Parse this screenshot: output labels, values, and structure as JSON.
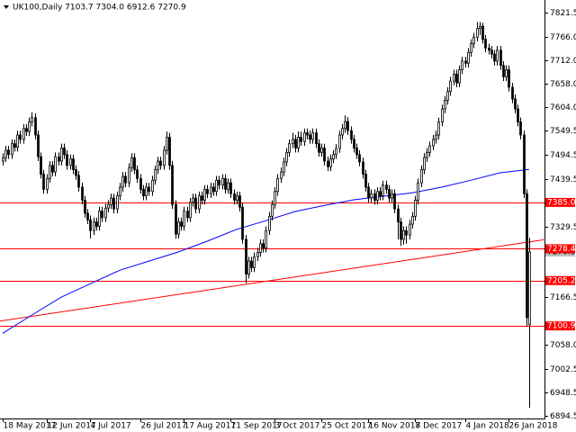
{
  "chart_data": {
    "type": "candlestick",
    "title": "UK100,Daily  7103.7 7304.0 6912.6 7270.9",
    "bull_color": "#ffffff",
    "bear_color": "#000000",
    "outline_color": "#000000",
    "ohlc": [
      [
        7480,
        7498,
        7470,
        7488
      ],
      [
        7488,
        7515,
        7478,
        7505
      ],
      [
        7505,
        7515,
        7485,
        7495
      ],
      [
        7495,
        7530,
        7485,
        7520
      ],
      [
        7520,
        7530,
        7502,
        7512
      ],
      [
        7512,
        7550,
        7502,
        7540
      ],
      [
        7540,
        7550,
        7520,
        7530
      ],
      [
        7530,
        7565,
        7520,
        7555
      ],
      [
        7555,
        7565,
        7538,
        7548
      ],
      [
        7548,
        7580,
        7538,
        7570
      ],
      [
        7570,
        7592,
        7560,
        7580
      ],
      [
        7580,
        7590,
        7530,
        7540
      ],
      [
        7540,
        7550,
        7480,
        7490
      ],
      [
        7490,
        7500,
        7440,
        7450
      ],
      [
        7450,
        7460,
        7405,
        7415
      ],
      [
        7415,
        7450,
        7405,
        7440
      ],
      [
        7440,
        7480,
        7430,
        7470
      ],
      [
        7470,
        7480,
        7445,
        7455
      ],
      [
        7455,
        7500,
        7445,
        7490
      ],
      [
        7490,
        7500,
        7470,
        7480
      ],
      [
        7480,
        7520,
        7470,
        7510
      ],
      [
        7510,
        7520,
        7485,
        7495
      ],
      [
        7495,
        7505,
        7460,
        7470
      ],
      [
        7470,
        7495,
        7460,
        7485
      ],
      [
        7485,
        7495,
        7450,
        7460
      ],
      [
        7460,
        7470,
        7437,
        7447
      ],
      [
        7447,
        7457,
        7410,
        7420
      ],
      [
        7420,
        7430,
        7380,
        7390
      ],
      [
        7390,
        7400,
        7350,
        7360
      ],
      [
        7360,
        7370,
        7335,
        7345
      ],
      [
        7345,
        7355,
        7302,
        7320
      ],
      [
        7320,
        7350,
        7310,
        7340
      ],
      [
        7340,
        7350,
        7320,
        7330
      ],
      [
        7330,
        7375,
        7320,
        7365
      ],
      [
        7365,
        7375,
        7340,
        7350
      ],
      [
        7350,
        7382,
        7340,
        7372
      ],
      [
        7372,
        7390,
        7362,
        7380
      ],
      [
        7380,
        7405,
        7370,
        7395
      ],
      [
        7395,
        7405,
        7360,
        7370
      ],
      [
        7370,
        7410,
        7360,
        7400
      ],
      [
        7400,
        7430,
        7390,
        7420
      ],
      [
        7420,
        7455,
        7410,
        7445
      ],
      [
        7445,
        7455,
        7420,
        7430
      ],
      [
        7430,
        7475,
        7420,
        7465
      ],
      [
        7465,
        7498,
        7455,
        7488
      ],
      [
        7488,
        7498,
        7450,
        7460
      ],
      [
        7460,
        7470,
        7430,
        7440
      ],
      [
        7440,
        7450,
        7405,
        7415
      ],
      [
        7415,
        7425,
        7390,
        7400
      ],
      [
        7400,
        7430,
        7390,
        7420
      ],
      [
        7420,
        7430,
        7400,
        7410
      ],
      [
        7410,
        7446,
        7400,
        7436
      ],
      [
        7436,
        7470,
        7426,
        7460
      ],
      [
        7460,
        7490,
        7450,
        7480
      ],
      [
        7480,
        7490,
        7460,
        7470
      ],
      [
        7470,
        7515,
        7460,
        7505
      ],
      [
        7505,
        7548,
        7495,
        7535
      ],
      [
        7535,
        7545,
        7460,
        7470
      ],
      [
        7470,
        7480,
        7370,
        7380
      ],
      [
        7380,
        7390,
        7302,
        7312
      ],
      [
        7312,
        7350,
        7302,
        7340
      ],
      [
        7340,
        7350,
        7320,
        7330
      ],
      [
        7330,
        7375,
        7320,
        7365
      ],
      [
        7365,
        7375,
        7340,
        7350
      ],
      [
        7350,
        7395,
        7340,
        7385
      ],
      [
        7385,
        7405,
        7375,
        7395
      ],
      [
        7395,
        7405,
        7360,
        7370
      ],
      [
        7370,
        7410,
        7360,
        7400
      ],
      [
        7400,
        7410,
        7380,
        7390
      ],
      [
        7390,
        7425,
        7380,
        7415
      ],
      [
        7415,
        7425,
        7395,
        7405
      ],
      [
        7405,
        7430,
        7395,
        7420
      ],
      [
        7420,
        7430,
        7400,
        7410
      ],
      [
        7410,
        7446,
        7400,
        7436
      ],
      [
        7436,
        7446,
        7415,
        7425
      ],
      [
        7425,
        7450,
        7415,
        7440
      ],
      [
        7440,
        7450,
        7405,
        7415
      ],
      [
        7415,
        7440,
        7405,
        7430
      ],
      [
        7430,
        7440,
        7395,
        7405
      ],
      [
        7405,
        7415,
        7380,
        7390
      ],
      [
        7390,
        7410,
        7380,
        7400
      ],
      [
        7400,
        7410,
        7364,
        7374
      ],
      [
        7374,
        7384,
        7290,
        7300
      ],
      [
        7300,
        7310,
        7199,
        7220
      ],
      [
        7220,
        7260,
        7210,
        7250
      ],
      [
        7250,
        7260,
        7225,
        7235
      ],
      [
        7235,
        7270,
        7225,
        7260
      ],
      [
        7260,
        7280,
        7250,
        7270
      ],
      [
        7270,
        7300,
        7260,
        7290
      ],
      [
        7290,
        7300,
        7270,
        7280
      ],
      [
        7280,
        7330,
        7270,
        7320
      ],
      [
        7320,
        7363,
        7310,
        7353
      ],
      [
        7353,
        7390,
        7343,
        7380
      ],
      [
        7380,
        7420,
        7370,
        7410
      ],
      [
        7410,
        7450,
        7400,
        7440
      ],
      [
        7440,
        7465,
        7430,
        7455
      ],
      [
        7455,
        7488,
        7445,
        7478
      ],
      [
        7478,
        7510,
        7468,
        7500
      ],
      [
        7500,
        7530,
        7490,
        7520
      ],
      [
        7520,
        7545,
        7510,
        7530
      ],
      [
        7530,
        7540,
        7500,
        7510
      ],
      [
        7510,
        7548,
        7500,
        7535
      ],
      [
        7535,
        7548,
        7515,
        7525
      ],
      [
        7525,
        7555,
        7515,
        7545
      ],
      [
        7545,
        7555,
        7530,
        7540
      ],
      [
        7540,
        7550,
        7520,
        7530
      ],
      [
        7530,
        7555,
        7520,
        7545
      ],
      [
        7545,
        7555,
        7510,
        7520
      ],
      [
        7520,
        7530,
        7490,
        7500
      ],
      [
        7500,
        7520,
        7490,
        7510
      ],
      [
        7510,
        7520,
        7470,
        7480
      ],
      [
        7480,
        7490,
        7457,
        7467
      ],
      [
        7467,
        7495,
        7457,
        7485
      ],
      [
        7485,
        7505,
        7475,
        7495
      ],
      [
        7495,
        7519,
        7485,
        7509
      ],
      [
        7509,
        7550,
        7499,
        7540
      ],
      [
        7540,
        7565,
        7530,
        7555
      ],
      [
        7555,
        7585,
        7545,
        7571
      ],
      [
        7571,
        7581,
        7540,
        7550
      ],
      [
        7550,
        7560,
        7520,
        7530
      ],
      [
        7530,
        7540,
        7500,
        7510
      ],
      [
        7510,
        7520,
        7485,
        7495
      ],
      [
        7495,
        7505,
        7468,
        7478
      ],
      [
        7478,
        7488,
        7440,
        7450
      ],
      [
        7450,
        7460,
        7410,
        7420
      ],
      [
        7420,
        7430,
        7385,
        7395
      ],
      [
        7395,
        7415,
        7385,
        7405
      ],
      [
        7405,
        7415,
        7380,
        7390
      ],
      [
        7390,
        7420,
        7380,
        7410
      ],
      [
        7410,
        7420,
        7390,
        7400
      ],
      [
        7400,
        7435,
        7390,
        7425
      ],
      [
        7425,
        7435,
        7405,
        7415
      ],
      [
        7415,
        7425,
        7385,
        7395
      ],
      [
        7395,
        7415,
        7385,
        7405
      ],
      [
        7405,
        7415,
        7360,
        7370
      ],
      [
        7370,
        7380,
        7300,
        7340
      ],
      [
        7340,
        7350,
        7285,
        7300
      ],
      [
        7300,
        7330,
        7288,
        7320
      ],
      [
        7320,
        7330,
        7290,
        7310
      ],
      [
        7310,
        7345,
        7300,
        7335
      ],
      [
        7335,
        7363,
        7325,
        7353
      ],
      [
        7353,
        7400,
        7343,
        7390
      ],
      [
        7390,
        7440,
        7380,
        7430
      ],
      [
        7430,
        7470,
        7420,
        7460
      ],
      [
        7460,
        7498,
        7450,
        7488
      ],
      [
        7488,
        7510,
        7478,
        7500
      ],
      [
        7500,
        7525,
        7490,
        7515
      ],
      [
        7515,
        7540,
        7505,
        7530
      ],
      [
        7530,
        7550,
        7520,
        7540
      ],
      [
        7540,
        7580,
        7530,
        7570
      ],
      [
        7570,
        7610,
        7560,
        7600
      ],
      [
        7600,
        7630,
        7590,
        7620
      ],
      [
        7620,
        7650,
        7610,
        7640
      ],
      [
        7640,
        7674,
        7630,
        7664
      ],
      [
        7664,
        7690,
        7654,
        7680
      ],
      [
        7680,
        7690,
        7650,
        7660
      ],
      [
        7660,
        7700,
        7650,
        7690
      ],
      [
        7690,
        7720,
        7680,
        7710
      ],
      [
        7710,
        7720,
        7695,
        7705
      ],
      [
        7705,
        7740,
        7695,
        7730
      ],
      [
        7730,
        7760,
        7720,
        7750
      ],
      [
        7750,
        7775,
        7740,
        7765
      ],
      [
        7765,
        7800,
        7755,
        7785
      ],
      [
        7785,
        7800,
        7770,
        7790
      ],
      [
        7790,
        7798,
        7750,
        7760
      ],
      [
        7760,
        7770,
        7730,
        7740
      ],
      [
        7740,
        7750,
        7725,
        7735
      ],
      [
        7735,
        7745,
        7716,
        7726
      ],
      [
        7726,
        7736,
        7700,
        7710
      ],
      [
        7710,
        7745,
        7700,
        7735
      ],
      [
        7735,
        7745,
        7690,
        7700
      ],
      [
        7700,
        7710,
        7664,
        7674
      ],
      [
        7674,
        7700,
        7664,
        7690
      ],
      [
        7690,
        7700,
        7640,
        7650
      ],
      [
        7650,
        7660,
        7613,
        7623
      ],
      [
        7623,
        7633,
        7590,
        7600
      ],
      [
        7600,
        7610,
        7560,
        7570
      ],
      [
        7570,
        7580,
        7530,
        7540
      ],
      [
        7540,
        7550,
        7395,
        7405
      ],
      [
        7405,
        7415,
        7100,
        7120
      ],
      [
        7103.7,
        7304,
        6912.6,
        7270.9
      ]
    ],
    "moving_average": {
      "color": "#0000ff",
      "x": [
        0,
        10,
        20,
        30,
        40,
        50,
        60,
        70,
        80,
        90,
        100,
        110,
        120,
        130,
        140,
        150,
        160,
        170,
        180
      ],
      "values": [
        7084,
        7126,
        7167,
        7198,
        7229,
        7250,
        7271,
        7296,
        7323,
        7343,
        7364,
        7378,
        7391,
        7399,
        7407,
        7420,
        7436,
        7453,
        7461
      ]
    },
    "trendline": {
      "color": "#ff0000",
      "x": [
        -1,
        185
      ],
      "values": [
        7112,
        7299
      ]
    },
    "levels": [
      {
        "value": 7385,
        "label": "7385.0"
      },
      7278.4,
      7205.2,
      7100.9
    ],
    "level_color": "#ff0000",
    "xlim": [
      -0.92,
      185.23
    ],
    "xticks": [
      {
        "value": 0,
        "label": "18 May 2017"
      },
      {
        "value": 15,
        "label": "12 Jun 2017"
      },
      {
        "value": 30,
        "label": "4 Jul 2017"
      },
      {
        "value": 47,
        "label": "26 Jul 2017"
      },
      {
        "value": 62,
        "label": "17 Aug 2017"
      },
      {
        "value": 78,
        "label": "11 Sep 2017"
      },
      {
        "value": 93,
        "label": "3 Oct 2017"
      },
      {
        "value": 109,
        "label": "25 Oct 2017"
      },
      {
        "value": 125,
        "label": "16 Nov 2017"
      },
      {
        "value": 141,
        "label": "8 Dec 2017"
      },
      {
        "value": 158,
        "label": "4 Jan 2018"
      },
      {
        "value": 173,
        "label": "26 Jan 2018"
      }
    ],
    "ylim": [
      6888,
      7850.5
    ],
    "yticks": [
      7821.5,
      {
        "value": 7766,
        "label": "7766.0"
      },
      {
        "value": 7712,
        "label": "7712.0"
      },
      {
        "value": 7658,
        "label": "7658.0"
      },
      {
        "value": 7604,
        "label": "7604.0"
      },
      7549.5,
      7494.5,
      7439.5,
      7329.5,
      7166.5,
      {
        "value": 7058,
        "label": "7058.0"
      },
      7002.5,
      6948.5,
      6894.5
    ]
  }
}
